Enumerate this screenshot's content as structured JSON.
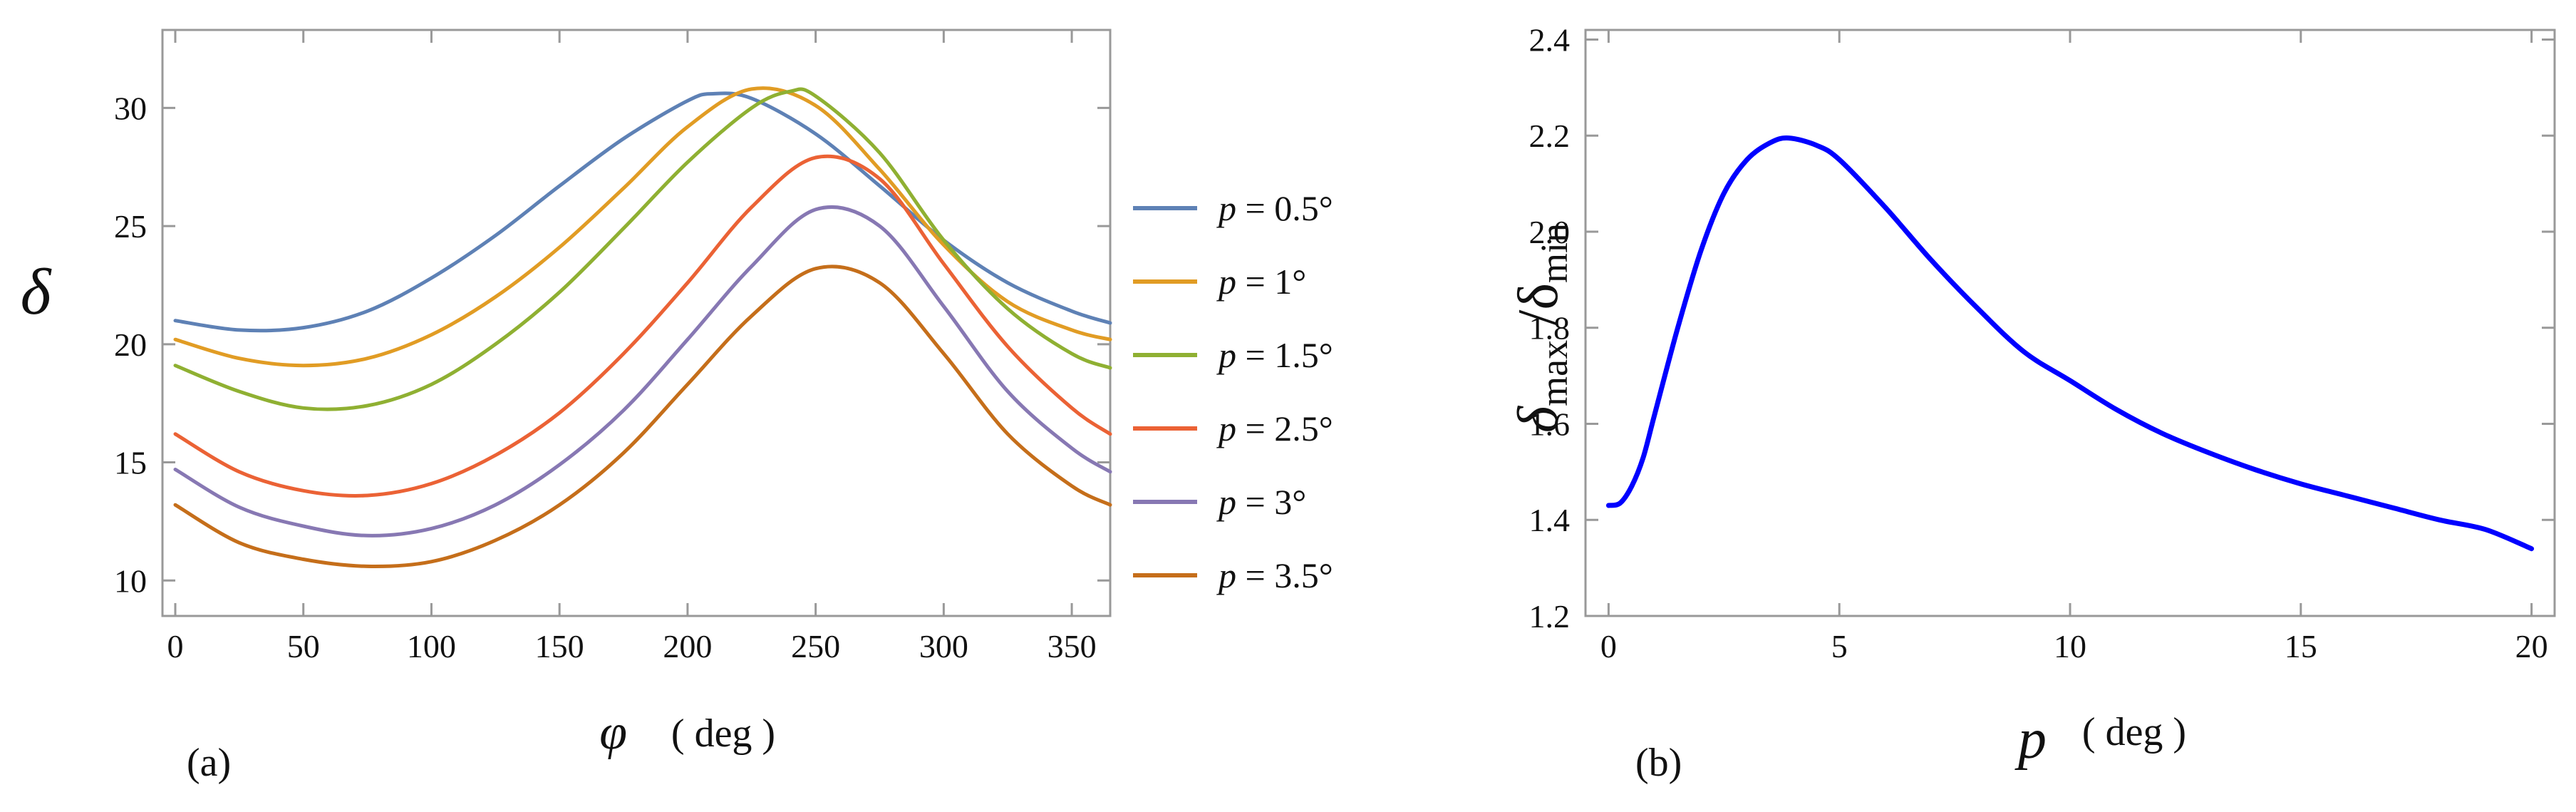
{
  "chart_data": [
    {
      "type": "line",
      "panel_label": "(a)",
      "xlabel_symbol": "φ",
      "xlabel_unit": "( deg )",
      "ylabel": "δ",
      "xlim": [
        -5,
        365
      ],
      "ylim": [
        8.5,
        33.3
      ],
      "xticks": [
        0,
        50,
        100,
        150,
        200,
        250,
        300,
        350
      ],
      "yticks": [
        10,
        15,
        20,
        25,
        30
      ],
      "legend_position": "right",
      "series": [
        {
          "name": "p = 0.5°",
          "p_symbol": "p",
          "rest": " = 0.5°",
          "color": "#5e81b5",
          "x": [
            0,
            25,
            50,
            75,
            100,
            125,
            150,
            175,
            200,
            210,
            225,
            250,
            275,
            300,
            325,
            350,
            365
          ],
          "y": [
            21.0,
            20.6,
            20.7,
            21.4,
            22.8,
            24.6,
            26.7,
            28.7,
            30.3,
            30.6,
            30.4,
            28.9,
            26.7,
            24.4,
            22.6,
            21.4,
            20.9
          ]
        },
        {
          "name": "p = 1°",
          "p_symbol": "p",
          "rest": " = 1°",
          "color": "#e19c24",
          "x": [
            0,
            25,
            50,
            75,
            100,
            125,
            150,
            175,
            200,
            225,
            250,
            275,
            300,
            325,
            350,
            365
          ],
          "y": [
            20.2,
            19.4,
            19.1,
            19.4,
            20.4,
            22.0,
            24.1,
            26.6,
            29.2,
            30.8,
            30.1,
            27.4,
            24.2,
            21.8,
            20.6,
            20.2
          ]
        },
        {
          "name": "p = 1.5°",
          "p_symbol": "p",
          "rest": " = 1.5°",
          "color": "#8fb032",
          "x": [
            0,
            25,
            50,
            75,
            100,
            125,
            150,
            175,
            200,
            225,
            240,
            250,
            275,
            300,
            325,
            350,
            365
          ],
          "y": [
            19.1,
            18.0,
            17.3,
            17.4,
            18.3,
            20.0,
            22.2,
            24.9,
            27.7,
            30.0,
            30.7,
            30.5,
            28.1,
            24.4,
            21.5,
            19.6,
            19.0
          ]
        },
        {
          "name": "p = 2.5°",
          "p_symbol": "p",
          "rest": " = 2.5°",
          "color": "#eb6235",
          "x": [
            0,
            25,
            50,
            75,
            100,
            125,
            150,
            175,
            200,
            225,
            250,
            275,
            300,
            325,
            350,
            365
          ],
          "y": [
            16.2,
            14.6,
            13.8,
            13.6,
            14.1,
            15.3,
            17.1,
            19.6,
            22.6,
            25.8,
            27.9,
            27.0,
            23.4,
            19.9,
            17.3,
            16.2
          ]
        },
        {
          "name": "p = 3°",
          "p_symbol": "p",
          "rest": " = 3°",
          "color": "#8778b3",
          "x": [
            0,
            25,
            50,
            75,
            100,
            125,
            150,
            175,
            200,
            225,
            250,
            275,
            300,
            325,
            350,
            365
          ],
          "y": [
            14.7,
            13.1,
            12.3,
            11.9,
            12.2,
            13.2,
            14.9,
            17.2,
            20.2,
            23.3,
            25.7,
            25.0,
            21.6,
            18.0,
            15.6,
            14.6
          ]
        },
        {
          "name": "p = 3.5°",
          "p_symbol": "p",
          "rest": " = 3.5°",
          "color": "#c56e1a",
          "x": [
            0,
            25,
            50,
            75,
            100,
            125,
            150,
            175,
            200,
            225,
            250,
            275,
            300,
            325,
            350,
            365
          ],
          "y": [
            13.2,
            11.6,
            10.9,
            10.6,
            10.8,
            11.7,
            13.2,
            15.4,
            18.3,
            21.2,
            23.2,
            22.6,
            19.6,
            16.2,
            14.0,
            13.2
          ]
        }
      ]
    },
    {
      "type": "line",
      "panel_label": "(b)",
      "xlabel_symbol": "p",
      "xlabel_unit": "( deg )",
      "ylabel_main": "δ",
      "ylabel_sub1": "max",
      "ylabel_slash": " /δ",
      "ylabel_sub2": "min",
      "xlim": [
        -0.5,
        20.5
      ],
      "ylim": [
        1.2,
        2.42
      ],
      "xticks": [
        0,
        5,
        10,
        15,
        20
      ],
      "yticks": [
        1.2,
        1.4,
        1.6,
        1.8,
        2.0,
        2.2,
        2.4
      ],
      "ytick_labels": [
        "1.2",
        "1.4",
        "1.6",
        "1.8",
        "2.0",
        "2.2",
        "2.4"
      ],
      "series": [
        {
          "name": "δmax/δmin",
          "color": "#0000ff",
          "x": [
            0,
            0.25,
            0.5,
            0.75,
            1.0,
            1.5,
            2.0,
            2.5,
            3.0,
            3.5,
            3.9,
            4.5,
            5.0,
            6.0,
            7.0,
            8.0,
            9.0,
            10.0,
            11.0,
            12.0,
            13.0,
            14.0,
            15.0,
            16.0,
            17.0,
            18.0,
            19.0,
            20.0
          ],
          "y": [
            1.43,
            1.435,
            1.47,
            1.53,
            1.62,
            1.8,
            1.96,
            2.08,
            2.15,
            2.185,
            2.195,
            2.18,
            2.15,
            2.05,
            1.94,
            1.84,
            1.75,
            1.69,
            1.63,
            1.58,
            1.54,
            1.505,
            1.475,
            1.45,
            1.425,
            1.4,
            1.38,
            1.34
          ]
        }
      ]
    }
  ]
}
